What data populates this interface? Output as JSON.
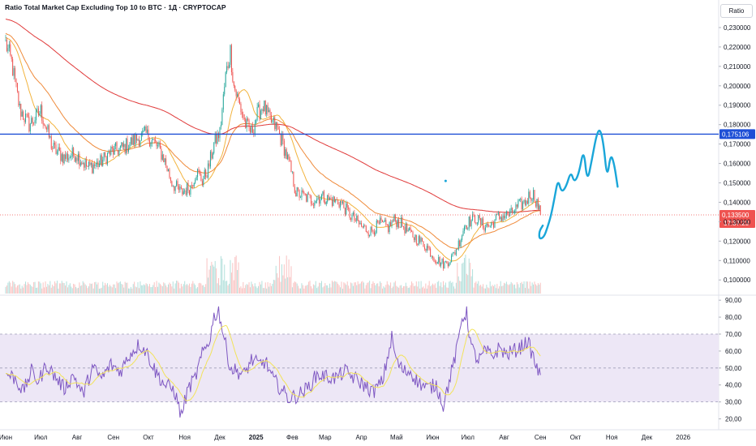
{
  "header": {
    "title": "Ratio Total Market Cap Excluding Top 10 to BTC · 1Д · CRYPTOCAP"
  },
  "toolbar": {
    "scale_label": "Ratio"
  },
  "colors": {
    "up": "#26a69a",
    "down": "#ef5350",
    "ma_fast": "#f2b33d",
    "ma_mid": "#ef8a3a",
    "ma_slow": "#e03a3a",
    "hline": "#1e4fd6",
    "drawing": "#1aa6d9",
    "rsi": "#7e57c2",
    "rsi_ma": "#f2e35a",
    "rsi_band": "#ede7f6",
    "price_badge": "#ef5350"
  },
  "chart_data": [
    {
      "type": "candlestick",
      "title": "Ratio Total Market Cap Excluding Top 10 to BTC · 1Д · CRYPTOCAP",
      "ylim": [
        0.093,
        0.235
      ],
      "y_ticks": [
        "0,100000",
        "0,110000",
        "0,120000",
        "0,130000",
        "0,140000",
        "0,150000",
        "0,160000",
        "0,170000",
        "0,180000",
        "0,190000",
        "0,200000",
        "0,210000",
        "0,220000",
        "0,230000"
      ],
      "y_tick_values": [
        0.1,
        0.11,
        0.12,
        0.13,
        0.14,
        0.15,
        0.16,
        0.17,
        0.18,
        0.19,
        0.2,
        0.21,
        0.22,
        0.23
      ],
      "x_ticks": [
        "Июн",
        "Июл",
        "Авг",
        "Сен",
        "Окт",
        "Ноя",
        "Дек",
        "2025",
        "Фев",
        "Мар",
        "Апр",
        "Май",
        "Июн",
        "Июл",
        "Авг",
        "Сен",
        "Окт",
        "Ноя",
        "Дек",
        "2026"
      ],
      "x_tick_days": [
        0,
        30,
        61,
        92,
        122,
        153,
        183,
        214,
        245,
        273,
        304,
        334,
        365,
        395,
        426,
        457,
        487,
        518,
        548,
        579
      ],
      "horizontal_line": {
        "value": 0.175106,
        "label": "0,175106"
      },
      "last_price": {
        "value": 0.1335,
        "label": "0,133500",
        "countdown": "17:37:23"
      },
      "close_anchors": [
        [
          0,
          0.222
        ],
        [
          5,
          0.212
        ],
        [
          12,
          0.188
        ],
        [
          20,
          0.18
        ],
        [
          30,
          0.187
        ],
        [
          40,
          0.168
        ],
        [
          50,
          0.163
        ],
        [
          60,
          0.165
        ],
        [
          70,
          0.158
        ],
        [
          80,
          0.16
        ],
        [
          90,
          0.166
        ],
        [
          100,
          0.168
        ],
        [
          110,
          0.172
        ],
        [
          120,
          0.175
        ],
        [
          128,
          0.17
        ],
        [
          135,
          0.163
        ],
        [
          142,
          0.15
        ],
        [
          150,
          0.145
        ],
        [
          158,
          0.148
        ],
        [
          163,
          0.156
        ],
        [
          168,
          0.151
        ],
        [
          173,
          0.157
        ],
        [
          178,
          0.17
        ],
        [
          183,
          0.176
        ],
        [
          188,
          0.205
        ],
        [
          192,
          0.218
        ],
        [
          195,
          0.2
        ],
        [
          200,
          0.19
        ],
        [
          205,
          0.18
        ],
        [
          210,
          0.176
        ],
        [
          215,
          0.185
        ],
        [
          220,
          0.19
        ],
        [
          225,
          0.183
        ],
        [
          232,
          0.178
        ],
        [
          238,
          0.168
        ],
        [
          243,
          0.158
        ],
        [
          248,
          0.145
        ],
        [
          255,
          0.143
        ],
        [
          262,
          0.141
        ],
        [
          270,
          0.143
        ],
        [
          278,
          0.141
        ],
        [
          286,
          0.14
        ],
        [
          295,
          0.133
        ],
        [
          305,
          0.127
        ],
        [
          312,
          0.125
        ],
        [
          320,
          0.129
        ],
        [
          327,
          0.127
        ],
        [
          332,
          0.131
        ],
        [
          338,
          0.129
        ],
        [
          345,
          0.124
        ],
        [
          352,
          0.121
        ],
        [
          360,
          0.117
        ],
        [
          367,
          0.111
        ],
        [
          375,
          0.108
        ],
        [
          382,
          0.112
        ],
        [
          388,
          0.12
        ],
        [
          392,
          0.128
        ],
        [
          396,
          0.13
        ],
        [
          402,
          0.132
        ],
        [
          408,
          0.128
        ],
        [
          414,
          0.128
        ],
        [
          420,
          0.132
        ],
        [
          426,
          0.133
        ],
        [
          432,
          0.134
        ],
        [
          438,
          0.138
        ],
        [
          444,
          0.14
        ],
        [
          448,
          0.144
        ],
        [
          451,
          0.144
        ],
        [
          454,
          0.14
        ],
        [
          457,
          0.1335
        ]
      ],
      "volume_max_rel": 1.0,
      "drawing_points": [
        [
          459,
          0.128
        ],
        [
          456,
          0.125
        ],
        [
          456,
          0.121
        ],
        [
          460,
          0.122
        ],
        [
          463,
          0.127
        ],
        [
          466,
          0.133
        ],
        [
          469,
          0.142
        ],
        [
          472,
          0.152
        ],
        [
          475,
          0.145
        ],
        [
          479,
          0.148
        ],
        [
          483,
          0.156
        ],
        [
          486,
          0.15
        ],
        [
          490,
          0.155
        ],
        [
          494,
          0.168
        ],
        [
          497,
          0.15
        ],
        [
          501,
          0.162
        ],
        [
          505,
          0.175
        ],
        [
          508,
          0.178
        ],
        [
          511,
          0.17
        ],
        [
          514,
          0.152
        ],
        [
          517,
          0.165
        ],
        [
          520,
          0.16
        ],
        [
          523,
          0.148
        ]
      ],
      "drawing_dot": [
        376,
        0.151
      ]
    },
    {
      "type": "line",
      "title": "",
      "ylim": [
        15,
        92
      ],
      "y_ticks": [
        "20,00",
        "30,00",
        "40,00",
        "50,00",
        "60,00",
        "70,00",
        "80,00",
        "90,00"
      ],
      "y_tick_values": [
        20,
        30,
        40,
        50,
        60,
        70,
        80,
        90
      ],
      "band": [
        30,
        70
      ],
      "midline": 50,
      "rsi_anchors": [
        [
          0,
          47
        ],
        [
          8,
          44
        ],
        [
          15,
          36
        ],
        [
          22,
          48
        ],
        [
          28,
          42
        ],
        [
          35,
          52
        ],
        [
          42,
          45
        ],
        [
          50,
          38
        ],
        [
          58,
          46
        ],
        [
          66,
          34
        ],
        [
          74,
          50
        ],
        [
          82,
          44
        ],
        [
          90,
          52
        ],
        [
          98,
          48
        ],
        [
          106,
          58
        ],
        [
          114,
          64
        ],
        [
          120,
          60
        ],
        [
          128,
          48
        ],
        [
          136,
          40
        ],
        [
          144,
          37
        ],
        [
          150,
          22
        ],
        [
          156,
          38
        ],
        [
          162,
          44
        ],
        [
          168,
          58
        ],
        [
          174,
          66
        ],
        [
          178,
          80
        ],
        [
          182,
          84
        ],
        [
          186,
          70
        ],
        [
          192,
          50
        ],
        [
          198,
          48
        ],
        [
          204,
          46
        ],
        [
          210,
          55
        ],
        [
          216,
          52
        ],
        [
          222,
          54
        ],
        [
          228,
          44
        ],
        [
          235,
          38
        ],
        [
          242,
          32
        ],
        [
          250,
          34
        ],
        [
          258,
          38
        ],
        [
          266,
          46
        ],
        [
          274,
          45
        ],
        [
          282,
          44
        ],
        [
          290,
          48
        ],
        [
          298,
          44
        ],
        [
          306,
          40
        ],
        [
          314,
          36
        ],
        [
          322,
          42
        ],
        [
          330,
          68
        ],
        [
          334,
          54
        ],
        [
          340,
          48
        ],
        [
          346,
          48
        ],
        [
          352,
          42
        ],
        [
          360,
          38
        ],
        [
          368,
          40
        ],
        [
          374,
          28
        ],
        [
          380,
          45
        ],
        [
          386,
          62
        ],
        [
          390,
          80
        ],
        [
          394,
          82
        ],
        [
          398,
          62
        ],
        [
          404,
          54
        ],
        [
          410,
          60
        ],
        [
          416,
          57
        ],
        [
          422,
          62
        ],
        [
          428,
          58
        ],
        [
          434,
          60
        ],
        [
          440,
          62
        ],
        [
          446,
          66
        ],
        [
          450,
          58
        ],
        [
          454,
          50
        ],
        [
          457,
          44
        ]
      ]
    }
  ]
}
